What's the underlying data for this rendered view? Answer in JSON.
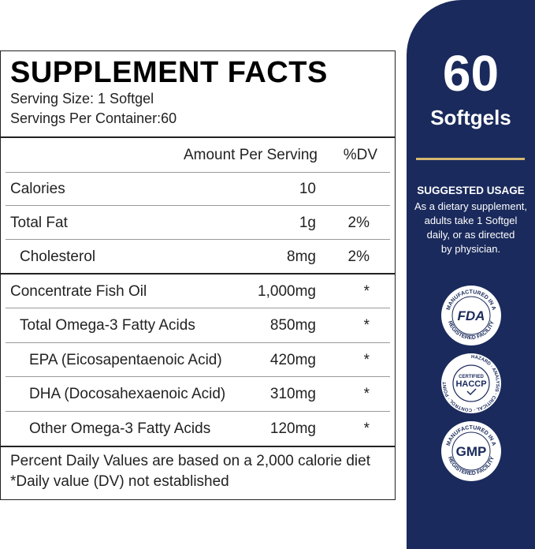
{
  "facts": {
    "title": "SUPPLEMENT FACTS",
    "serving_size": "Serving Size: 1 Softgel",
    "servings_per_container": "Servings Per Container:60",
    "header_amount": "Amount Per Serving",
    "header_dv": "%DV",
    "rows": [
      {
        "name": "Calories",
        "amount": "10",
        "dv": ""
      },
      {
        "name": "Total Fat",
        "amount": "1g",
        "dv": "2%"
      },
      {
        "name": "Cholesterol",
        "amount": "8mg",
        "dv": "2%"
      },
      {
        "name": "Concentrate Fish Oil",
        "amount": "1,000mg",
        "dv": "*"
      },
      {
        "name": "Total Omega-3 Fatty Acids",
        "amount": "850mg",
        "dv": "*"
      },
      {
        "name": "EPA (Eicosapentaenoic Acid)",
        "amount": "420mg",
        "dv": "*"
      },
      {
        "name": "DHA (Docosahexaenoic Acid)",
        "amount": "310mg",
        "dv": "*"
      },
      {
        "name": "Other Omega-3 Fatty Acids",
        "amount": "120mg",
        "dv": "*"
      }
    ],
    "footnote_1": "Percent Daily Values are based on a 2,000 calorie diet",
    "footnote_2": "*Daily value (DV) not established"
  },
  "side": {
    "count": "60",
    "unit": "Softgels",
    "usage_heading": "SUGGESTED USAGE",
    "usage_lines": [
      "As a dietary supplement,",
      "adults take 1 Softgel",
      "daily, or as directed",
      "by physician."
    ],
    "seals": [
      {
        "center": "FDA",
        "ring_top": "MANUFACTURED IN A",
        "ring_bottom": "REGISTERED FACILITY"
      },
      {
        "center_top": "CERTIFIED",
        "center": "HACCP",
        "ring": "HAZARD · ANALYSIS · CRITICAL · CONTROL · POINT"
      },
      {
        "center": "GMP",
        "ring_top": "MANUFACTURED IN A",
        "ring_bottom": "REGISTERED FACILITY"
      }
    ],
    "colors": {
      "band": "#1a2a5c",
      "accent": "#d4b872"
    }
  }
}
